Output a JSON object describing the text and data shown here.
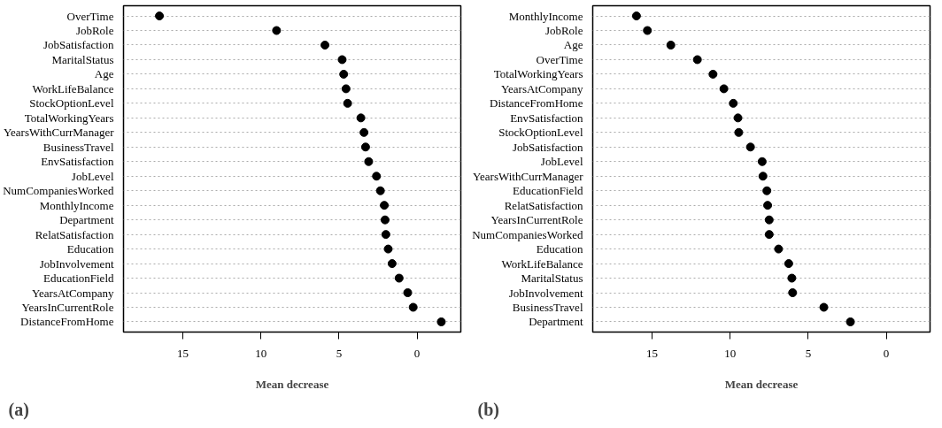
{
  "chart_data": [
    {
      "type": "scatter",
      "orientation": "horizontal",
      "xlabel": "Mean decrease",
      "annotations": [
        "(a)"
      ],
      "marker": "circle",
      "grid": "y",
      "xlim": [
        18.8,
        -2.8
      ],
      "xticks": [
        15,
        10,
        5,
        0
      ],
      "categories": [
        "OverTime",
        "JobRole",
        "JobSatisfaction",
        "MaritalStatus",
        "Age",
        "WorkLifeBalance",
        "StockOptionLevel",
        "TotalWorkingYears",
        "YearsWithCurrManager",
        "BusinessTravel",
        "EnvSatisfaction",
        "JobLevel",
        "NumCompaniesWorked",
        "MonthlyIncome",
        "Department",
        "RelatSatisfaction",
        "Education",
        "JobInvolvement",
        "EducationField",
        "YearsAtCompany",
        "YearsInCurrentRole",
        "DistanceFromHome"
      ],
      "series": [
        {
          "color": "#000000",
          "values": [
            16.5,
            9.0,
            5.9,
            4.8,
            4.7,
            4.55,
            4.45,
            3.6,
            3.4,
            3.3,
            3.1,
            2.6,
            2.35,
            2.1,
            2.05,
            2.0,
            1.85,
            1.6,
            1.15,
            0.6,
            0.25,
            -1.55
          ]
        }
      ]
    },
    {
      "type": "scatter",
      "orientation": "horizontal",
      "xlabel": "Mean decrease",
      "annotations": [
        "(b)"
      ],
      "marker": "circle",
      "grid": "y",
      "xlim": [
        18.8,
        -2.8
      ],
      "xticks": [
        15,
        10,
        5,
        0
      ],
      "categories": [
        "MonthlyIncome",
        "JobRole",
        "Age",
        "OverTime",
        "TotalWorkingYears",
        "YearsAtCompany",
        "DistanceFromHome",
        "EnvSatisfaction",
        "StockOptionLevel",
        "JobSatisfaction",
        "JobLevel",
        "YearsWithCurrManager",
        "EducationField",
        "RelatSatisfaction",
        "YearsInCurrentRole",
        "NumCompaniesWorked",
        "Education",
        "WorkLifeBalance",
        "MaritalStatus",
        "JobInvolvement",
        "BusinessTravel",
        "Department"
      ],
      "series": [
        {
          "color": "#000000",
          "values": [
            16.0,
            15.3,
            13.8,
            12.1,
            11.1,
            10.4,
            9.8,
            9.5,
            9.45,
            8.7,
            7.95,
            7.9,
            7.65,
            7.6,
            7.5,
            7.5,
            6.9,
            6.25,
            6.05,
            6.0,
            4.0,
            2.3
          ]
        }
      ]
    }
  ]
}
